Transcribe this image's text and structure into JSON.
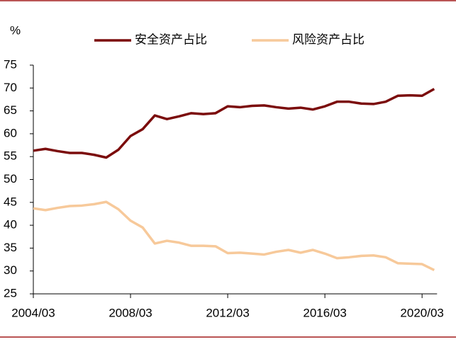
{
  "chart_data": {
    "type": "line",
    "y_label": "%",
    "categories": [
      "2004/03",
      null,
      null,
      null,
      null,
      null,
      null,
      null,
      "2008/03",
      null,
      null,
      null,
      null,
      null,
      null,
      null,
      "2012/03",
      null,
      null,
      null,
      null,
      null,
      null,
      null,
      "2016/03",
      null,
      null,
      null,
      null,
      null,
      null,
      null,
      "2020/03",
      null
    ],
    "series": [
      {
        "name": "安全资产占比",
        "color": "#7b0c0c",
        "values": [
          56.3,
          56.7,
          56.2,
          55.8,
          55.8,
          55.4,
          54.8,
          56.5,
          59.5,
          61,
          64,
          63.2,
          63.8,
          64.5,
          64.3,
          64.5,
          66,
          65.8,
          66.1,
          66.2,
          65.8,
          65.5,
          65.7,
          65.3,
          66,
          67,
          67,
          66.6,
          66.5,
          67,
          68.3,
          68.4,
          68.3,
          69.8
        ]
      },
      {
        "name": "风险资产占比",
        "color": "#f7c99a",
        "values": [
          43.7,
          43.3,
          43.8,
          44.2,
          44.3,
          44.6,
          45.1,
          43.5,
          41,
          39.5,
          36,
          36.6,
          36.2,
          35.5,
          35.5,
          35.4,
          33.9,
          34,
          33.8,
          33.6,
          34.2,
          34.6,
          34,
          34.6,
          33.8,
          32.8,
          33,
          33.3,
          33.4,
          33,
          31.7,
          31.6,
          31.5,
          30.2
        ]
      }
    ],
    "ylim": [
      25,
      75
    ],
    "yticks": [
      25,
      30,
      35,
      40,
      45,
      50,
      55,
      60,
      65,
      70,
      75
    ]
  }
}
